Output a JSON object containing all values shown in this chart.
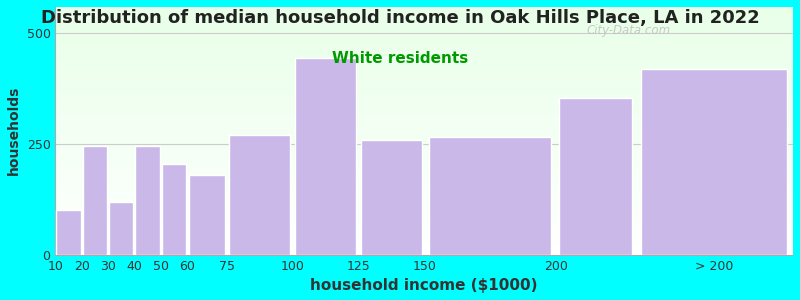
{
  "title": "Distribution of median household income in Oak Hills Place, LA in 2022",
  "subtitle": "White residents",
  "xlabel": "household income ($1000)",
  "ylabel": "households",
  "title_fontsize": 13,
  "subtitle_fontsize": 11,
  "subtitle_color": "#009900",
  "bar_lefts": [
    10,
    20,
    30,
    40,
    50,
    60,
    75,
    100,
    125,
    150,
    200,
    230
  ],
  "bar_widths": [
    10,
    10,
    10,
    10,
    10,
    15,
    25,
    25,
    25,
    50,
    30,
    60
  ],
  "values": [
    100,
    245,
    120,
    245,
    205,
    180,
    270,
    445,
    260,
    265,
    355,
    420
  ],
  "bar_color": "#c9b8e8",
  "bar_edgecolor": "#ffffff",
  "background_color": "#00ffff",
  "xlim": [
    10,
    290
  ],
  "ylim": [
    0,
    560
  ],
  "yticks": [
    0,
    250,
    500
  ],
  "xtick_positions": [
    10,
    20,
    30,
    40,
    50,
    60,
    75,
    100,
    125,
    150,
    200,
    260
  ],
  "xtick_labels": [
    "10",
    "20",
    "30",
    "40",
    "50",
    "60",
    "75",
    "100",
    "125",
    "150",
    "200",
    "> 200"
  ],
  "watermark": "City-Data.com",
  "watermark_color": "#c0c0c0"
}
